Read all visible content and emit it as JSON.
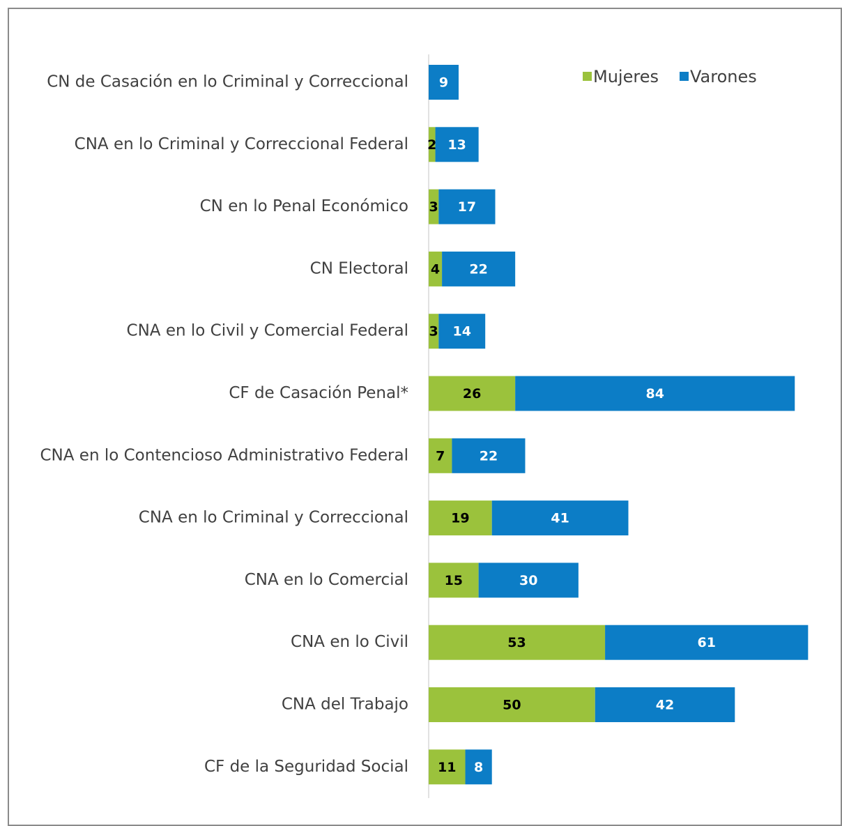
{
  "chart_data": {
    "type": "stacked_bar_horizontal",
    "categories": [
      "CN de Casación en lo Criminal y Correccional",
      "CNA en lo Criminal y Correccional Federal",
      "CN en lo Penal Económico",
      "CN Electoral",
      "CNA en lo Civil y Comercial Federal",
      "CF de Casación Penal*",
      "CNA en lo Contencioso Administrativo Federal",
      "CNA en lo Criminal y Correccional",
      "CNA en lo Comercial",
      "CNA en lo Civil",
      "CNA del Trabajo",
      "CF de la Seguridad Social"
    ],
    "series": [
      {
        "name": "Mujeres",
        "color": "#9bc23c",
        "values": [
          null,
          2,
          3,
          4,
          3,
          26,
          7,
          19,
          15,
          53,
          50,
          11
        ]
      },
      {
        "name": "Varones",
        "color": "#0c7dc6",
        "values": [
          9,
          13,
          17,
          22,
          14,
          84,
          22,
          41,
          30,
          61,
          42,
          8
        ]
      }
    ],
    "xlim": [
      0,
      120
    ],
    "legend": "top-right"
  }
}
